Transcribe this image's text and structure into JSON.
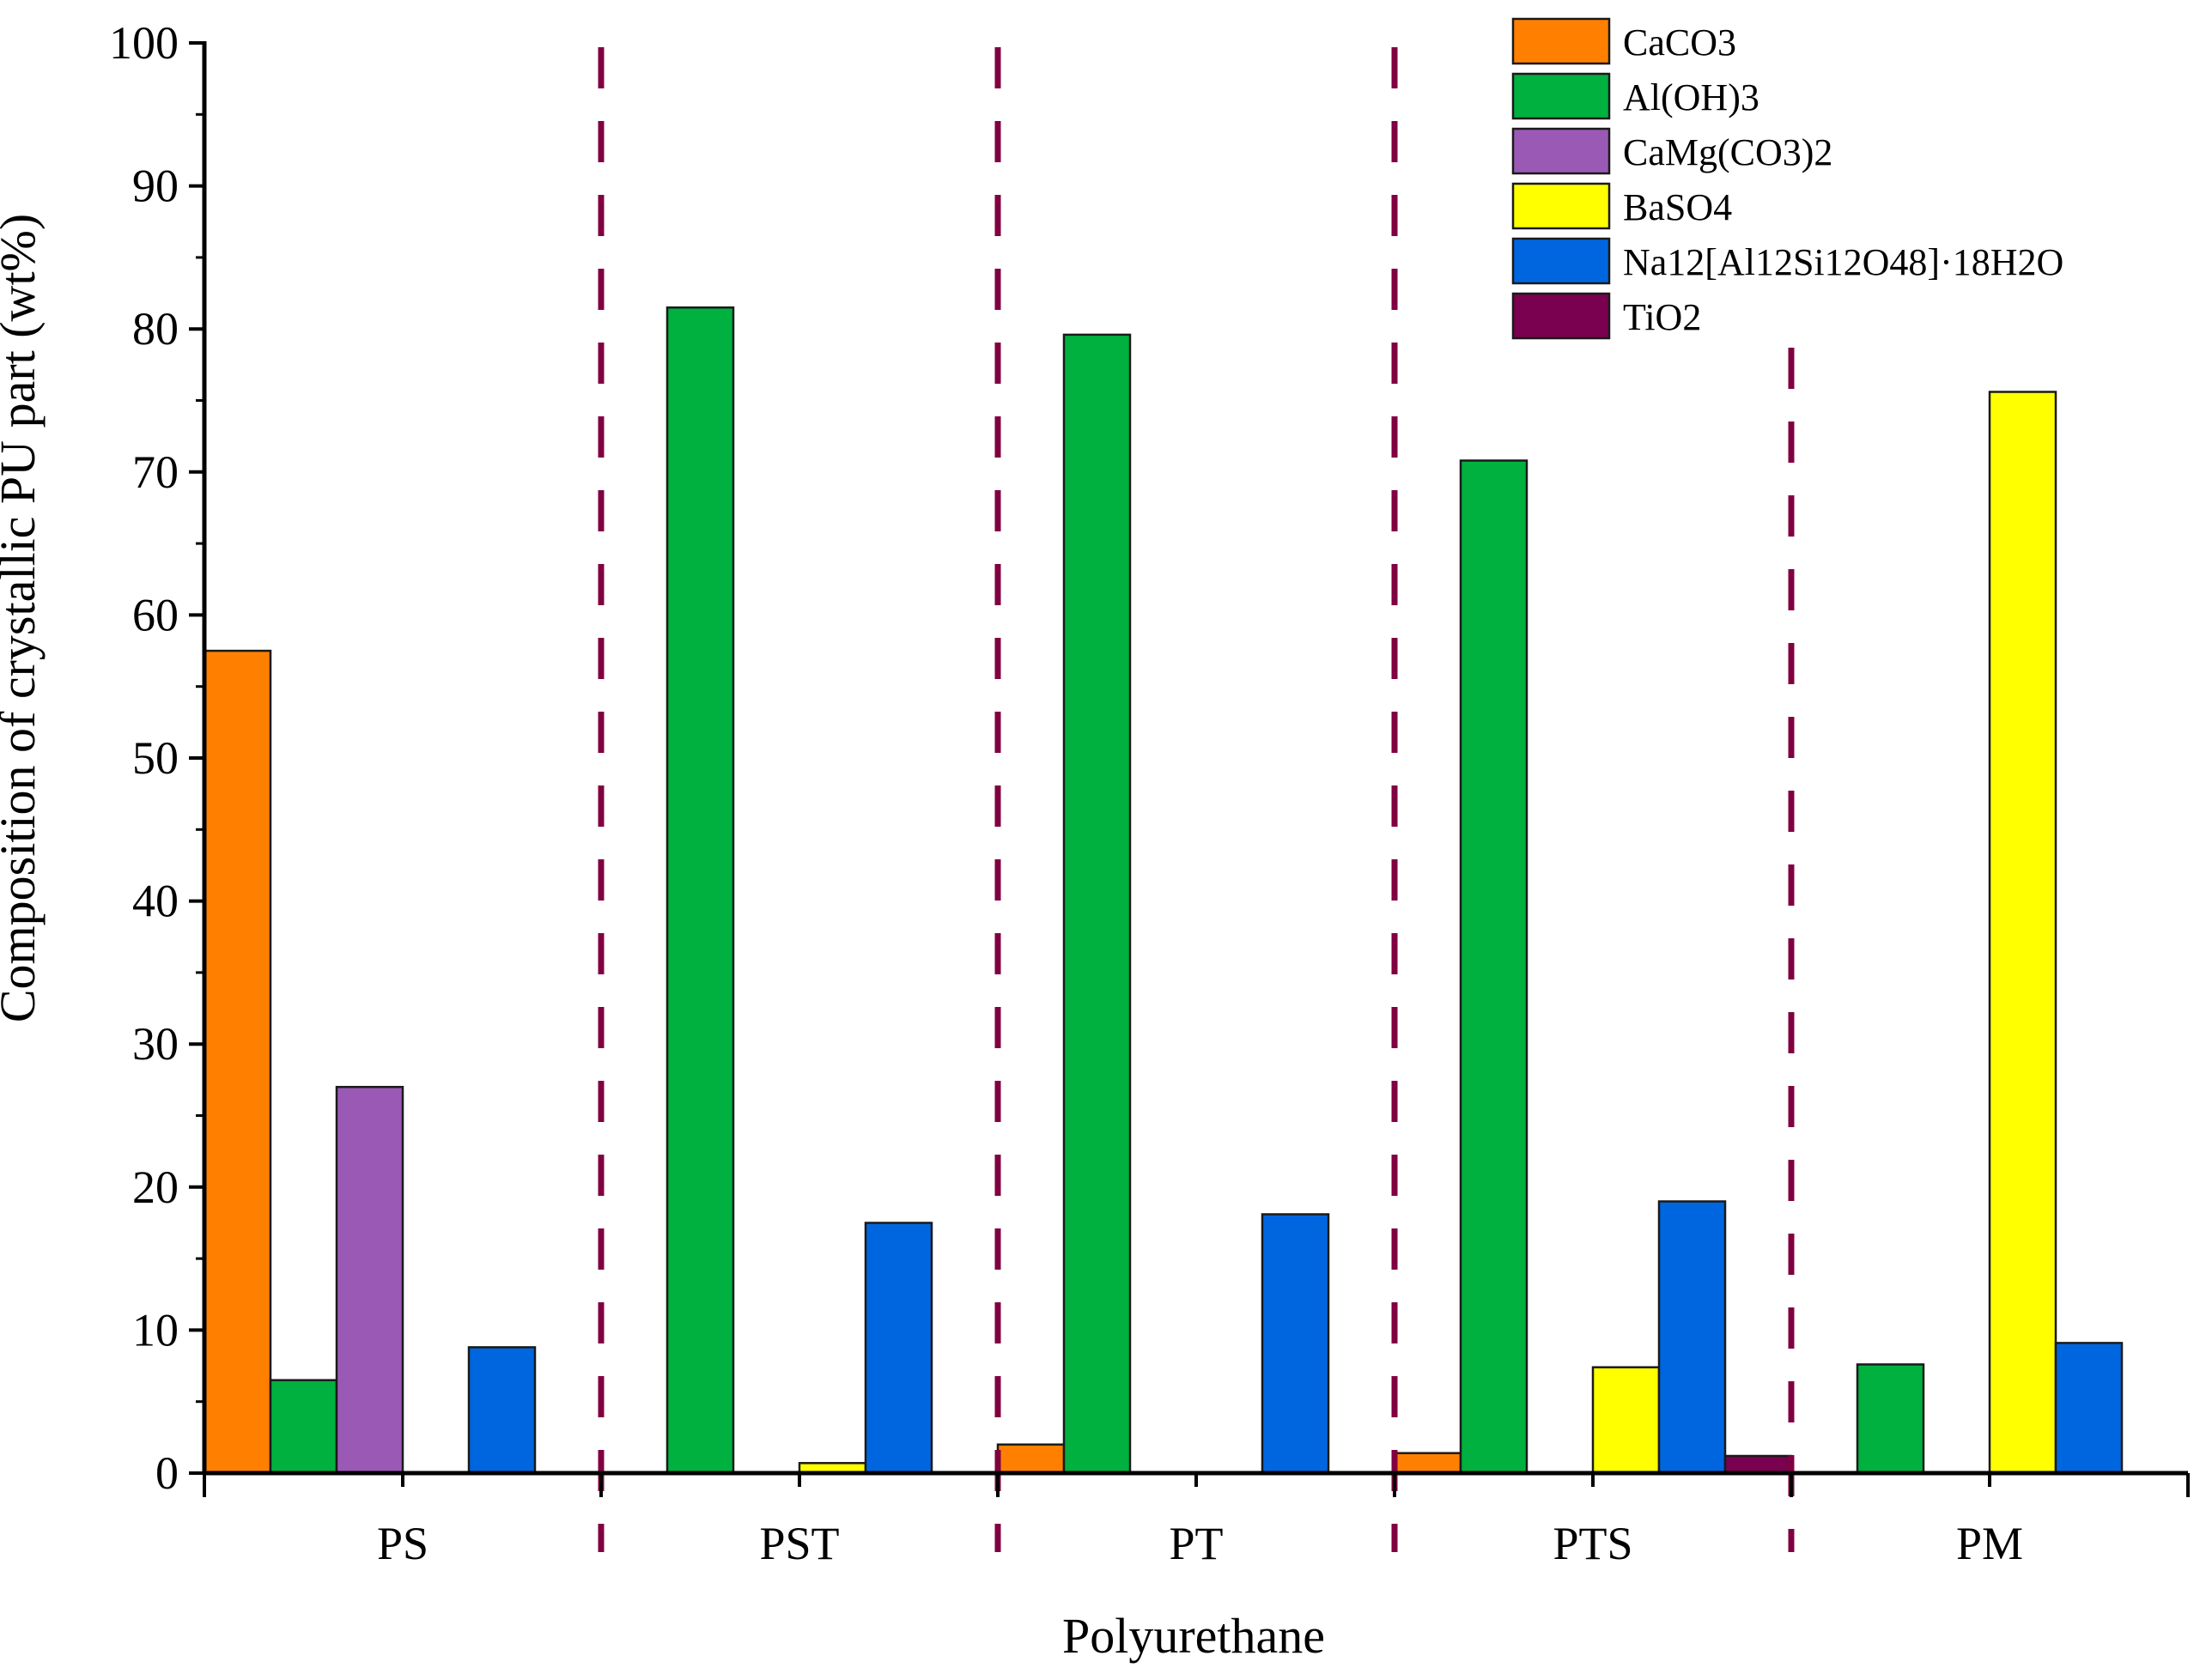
{
  "chart_data": {
    "type": "bar",
    "title": "",
    "xlabel": "Polyurethane",
    "ylabel": "Composition of crystallic PU part (wt%)",
    "ylim": [
      0,
      100
    ],
    "yticks": [
      "0",
      "10",
      "20",
      "30",
      "40",
      "50",
      "60",
      "70",
      "80",
      "90",
      "100"
    ],
    "categories": [
      "PS",
      "PST",
      "PT",
      "PTS",
      "PM"
    ],
    "grid": false,
    "legend_position": "top-right",
    "category_separators": "dashed",
    "series": [
      {
        "name": "CaCO3",
        "color": "#FF8000",
        "values": [
          57.5,
          0,
          2.0,
          1.4,
          0
        ]
      },
      {
        "name": "Al(OH)3",
        "color": "#00B140",
        "values": [
          6.5,
          81.5,
          79.6,
          70.8,
          7.6
        ]
      },
      {
        "name": "CaMg(CO3)2",
        "color": "#9B59B6",
        "values": [
          27.0,
          0,
          0,
          0,
          0
        ]
      },
      {
        "name": "BaSO4",
        "color": "#FFFF00",
        "values": [
          0,
          0.7,
          0,
          7.4,
          75.6
        ]
      },
      {
        "name": "Na12[Al12Si12O48]·18H2O",
        "color": "#0066E0",
        "values": [
          8.8,
          17.5,
          18.1,
          19.0,
          9.1
        ]
      },
      {
        "name": "TiO2",
        "color": "#7A0050",
        "values": [
          0,
          0,
          0,
          1.2,
          0
        ]
      }
    ],
    "separator_color": "#800040"
  }
}
